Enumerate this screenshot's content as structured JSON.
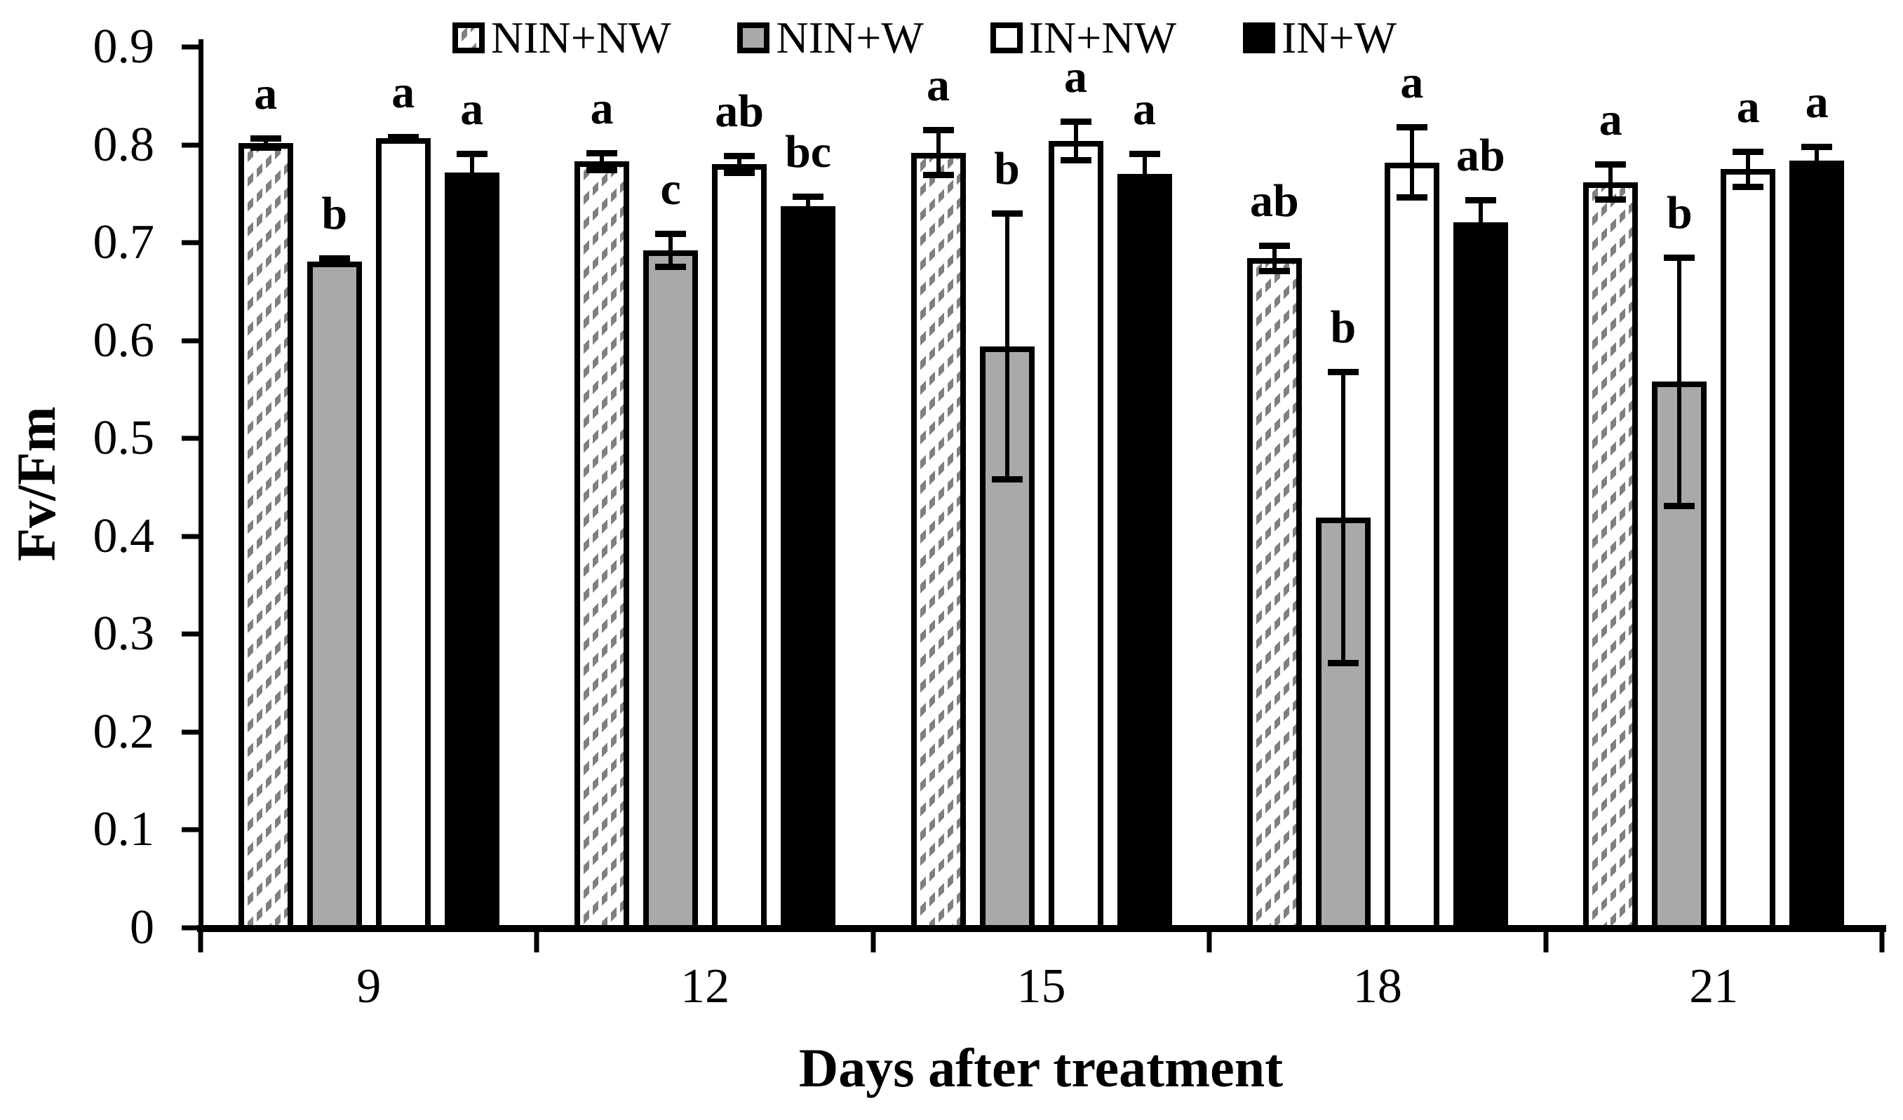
{
  "chart_data": {
    "type": "bar",
    "title": "",
    "xlabel": "Days after treatment",
    "ylabel": "Fv/Fm",
    "categories": [
      "9",
      "12",
      "15",
      "18",
      "21"
    ],
    "ylim": [
      0,
      0.9
    ],
    "yticks": [
      0,
      0.1,
      0.2,
      0.3,
      0.4,
      0.5,
      0.6,
      0.7,
      0.8,
      0.9
    ],
    "ytick_labels": [
      "0",
      "0.1",
      "0.2",
      "0.3",
      "0.4",
      "0.5",
      "0.6",
      "0.7",
      "0.8",
      "0.9"
    ],
    "grid": false,
    "legend_position": "top",
    "error_bars": "symmetric",
    "series": [
      {
        "name": "NIN+NW",
        "pattern": "diagonal-hatch",
        "style": "hatched",
        "values": [
          0.802,
          0.783,
          0.792,
          0.684,
          0.762
        ],
        "errors": [
          0.008,
          0.012,
          0.026,
          0.016,
          0.021
        ],
        "letters": [
          "a",
          "a",
          "a",
          "ab",
          "a"
        ]
      },
      {
        "name": "NIN+W",
        "pattern": "solid-gray",
        "style": "gray",
        "values": [
          0.681,
          0.692,
          0.594,
          0.419,
          0.558
        ],
        "errors": [
          0.006,
          0.02,
          0.139,
          0.152,
          0.13
        ],
        "letters": [
          "b",
          "c",
          "b",
          "b",
          "b"
        ]
      },
      {
        "name": "IN+NW",
        "pattern": "open-white",
        "style": "white",
        "values": [
          0.807,
          0.78,
          0.804,
          0.782,
          0.775
        ],
        "errors": [
          0.004,
          0.012,
          0.023,
          0.039,
          0.021
        ],
        "letters": [
          "a",
          "ab",
          "a",
          "a",
          "a"
        ]
      },
      {
        "name": "IN+W",
        "pattern": "solid-black",
        "style": "black",
        "values": [
          0.772,
          0.737,
          0.77,
          0.721,
          0.784
        ],
        "errors": [
          0.022,
          0.013,
          0.024,
          0.026,
          0.017
        ],
        "letters": [
          "a",
          "bc",
          "a",
          "ab",
          "a"
        ]
      }
    ],
    "colors": {
      "bar_outline": "#000000",
      "gray_fill": "#a9a9a9",
      "hatch_gray": "#7f7f7f",
      "black_fill": "#000000",
      "background": "#ffffff"
    }
  }
}
